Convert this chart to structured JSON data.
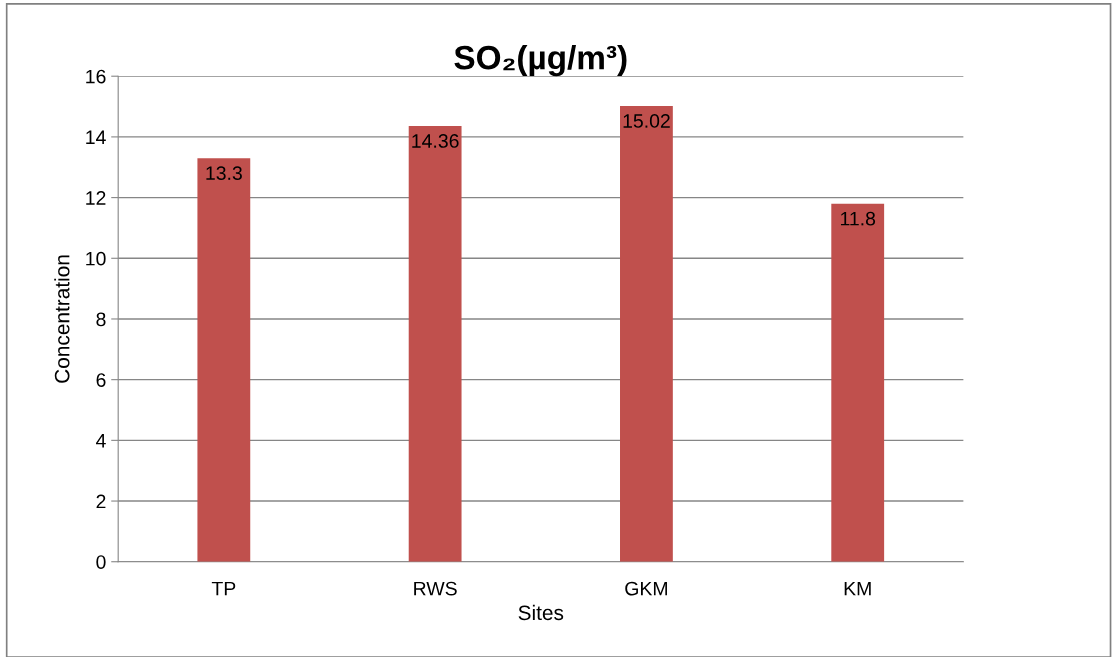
{
  "chart_data": {
    "type": "bar",
    "title": "SO₂(µg/m³)",
    "xlabel": "Sites",
    "ylabel": "Concentration",
    "categories": [
      "TP",
      "RWS",
      "GKM",
      "KM"
    ],
    "values": [
      13.3,
      14.36,
      15.02,
      11.8
    ],
    "color": "#c0504d",
    "ylim": [
      0,
      16
    ],
    "yticks": [
      0,
      2,
      4,
      6,
      8,
      10,
      12,
      14,
      16
    ],
    "grid": "y",
    "data_labels": true
  }
}
